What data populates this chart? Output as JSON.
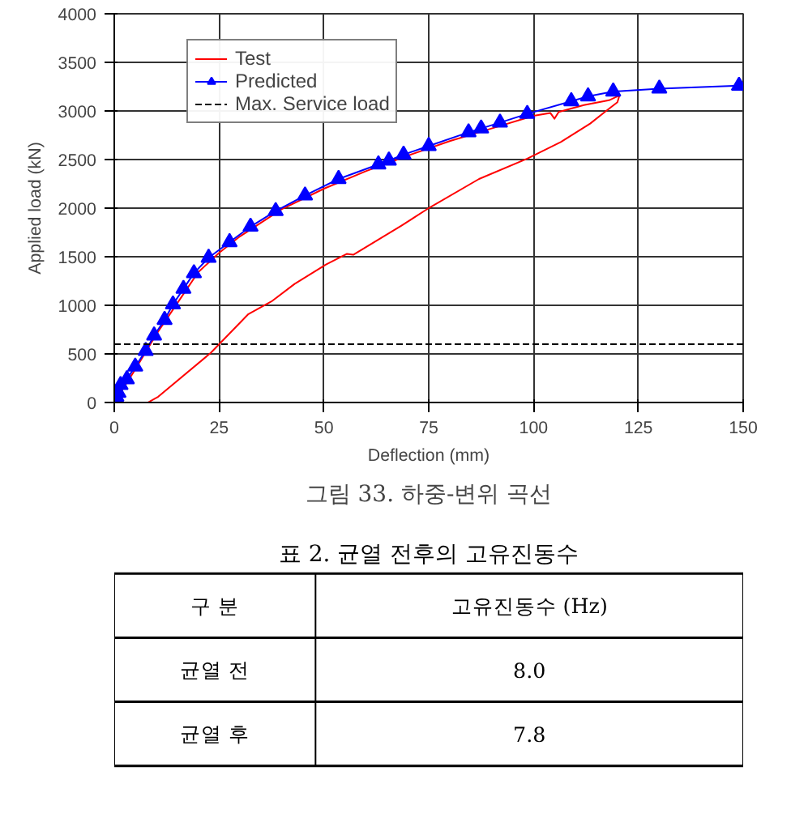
{
  "chart_data": [
    {
      "type": "line",
      "xlabel": "Deflection (mm)",
      "ylabel": "Applied load (kN)",
      "xlim": [
        0,
        150
      ],
      "ylim": [
        0,
        4000
      ],
      "xticks": [
        0,
        25,
        50,
        75,
        100,
        125,
        150
      ],
      "yticks": [
        0,
        500,
        1000,
        1500,
        2000,
        2500,
        3000,
        3500,
        4000
      ],
      "grid": true,
      "legend": "top left",
      "series": [
        {
          "name": "Test",
          "color": "#ff0000",
          "marker": "none",
          "x": [
            0,
            5,
            10,
            15,
            20,
            25,
            30,
            40,
            50,
            60,
            70,
            80,
            90,
            100,
            104,
            105,
            106,
            112,
            118,
            120.5,
            120,
            117,
            113.5,
            106.5,
            98.5,
            87,
            75,
            68.5,
            57,
            55.5,
            50.5,
            43,
            37.5,
            32,
            23,
            10.5,
            8
          ],
          "values": [
            0,
            340,
            700,
            1020,
            1340,
            1540,
            1710,
            1990,
            2200,
            2380,
            2540,
            2690,
            2820,
            2950,
            2980,
            2920,
            2990,
            3060,
            3110,
            3160,
            3090,
            2990,
            2870,
            2680,
            2510,
            2300,
            2000,
            1820,
            1520,
            1530,
            1420,
            1220,
            1040,
            910,
            510,
            60,
            0
          ]
        },
        {
          "name": "Predicted",
          "color": "#0000ff",
          "marker": "triangle",
          "x": [
            0.5,
            1,
            1.5,
            3,
            5,
            7.5,
            9.5,
            12,
            14,
            16.5,
            19,
            22.5,
            27.5,
            32.5,
            38.5,
            45.5,
            53.5,
            63,
            65.5,
            69,
            75,
            84.5,
            87.5,
            92,
            98.5,
            109,
            113,
            119,
            130,
            149
          ],
          "values": [
            60,
            100,
            180,
            240,
            370,
            530,
            690,
            850,
            1010,
            1170,
            1330,
            1490,
            1650,
            1810,
            1970,
            2130,
            2300,
            2450,
            2490,
            2550,
            2640,
            2780,
            2820,
            2880,
            2970,
            3100,
            3150,
            3200,
            3230,
            3260
          ]
        }
      ],
      "ref_lines": [
        {
          "axis": "y",
          "value": 600,
          "label": "Max. Service load",
          "color": "#000000",
          "line_style": "dashed"
        }
      ],
      "annotations": [
        "그림 33. 하중-변위 곡선"
      ]
    },
    {
      "type": "other",
      "title": "표 2. 균열 전후의 고유진동수",
      "xlabel": "구 분",
      "ylabel": "고유진동수 (Hz)",
      "categories": [
        "균열 전",
        "균열 후"
      ],
      "value_labels": [
        "8.0",
        "7.8"
      ]
    }
  ]
}
